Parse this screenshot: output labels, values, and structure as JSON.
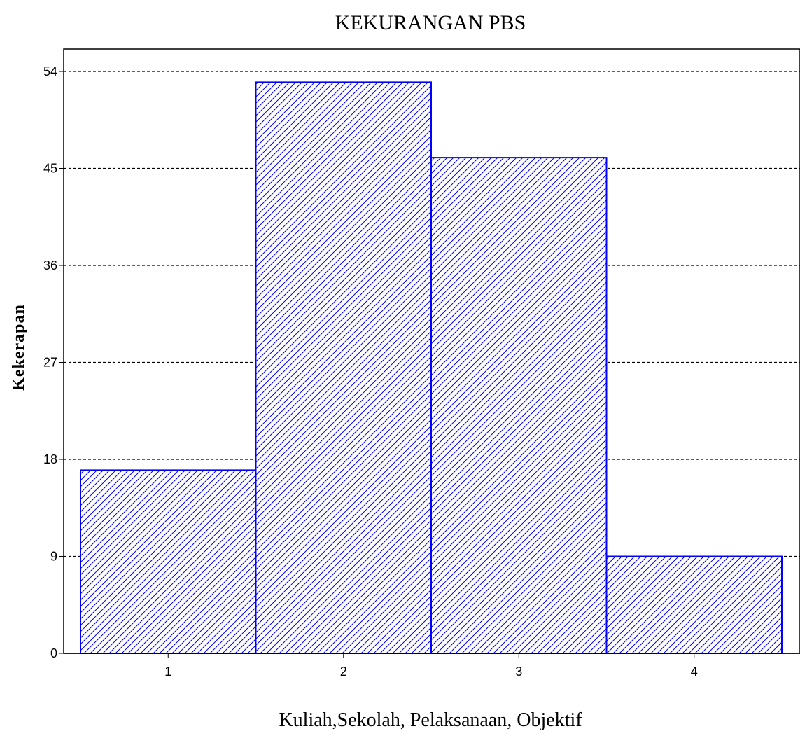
{
  "chart_data": {
    "type": "bar",
    "title": "KEKURANGAN PBS",
    "xlabel": "Kuliah,Sekolah, Pelaksanaan, Objektif",
    "ylabel": "Kekerapan",
    "categories": [
      "1",
      "2",
      "3",
      "4"
    ],
    "values": [
      17,
      53,
      46,
      9
    ],
    "ylim": [
      0,
      56
    ],
    "yticks": [
      0,
      9,
      18,
      27,
      36,
      45,
      54
    ],
    "grid": true,
    "fill_pattern": "diagonal-hatch",
    "bar_color": "#0000ff",
    "legend": "none"
  }
}
